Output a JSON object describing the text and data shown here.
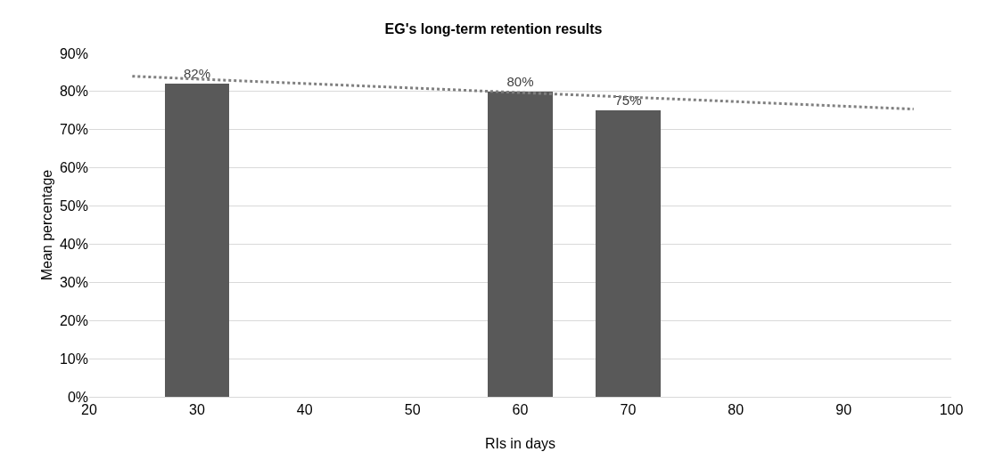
{
  "chart_data": {
    "type": "bar",
    "title": "EG's long-term retention results",
    "xlabel": "RIs in days",
    "ylabel": "Mean percentage",
    "x": [
      30,
      60,
      70
    ],
    "series": [
      {
        "color": "#595959",
        "values": [
          82,
          80,
          75
        ],
        "value_labels": [
          "82%",
          "80%",
          "75%"
        ]
      },
      {
        "type": "line",
        "color": "#7f7f7f",
        "line_style": "dotted",
        "marker": "none",
        "x": [
          24,
          96.5
        ],
        "values": [
          84,
          75.4
        ]
      }
    ],
    "xlim": [
      20,
      100
    ],
    "xticks": [
      20,
      30,
      40,
      50,
      60,
      70,
      80,
      90,
      100
    ],
    "ylim": [
      0,
      90
    ],
    "yticks": [
      {
        "value": 0,
        "label": "0%"
      },
      {
        "value": 10,
        "label": "10%"
      },
      {
        "value": 20,
        "label": "20%"
      },
      {
        "value": 30,
        "label": "30%"
      },
      {
        "value": 40,
        "label": "40%"
      },
      {
        "value": 50,
        "label": "50%"
      },
      {
        "value": 60,
        "label": "60%"
      },
      {
        "value": 70,
        "label": "70%"
      },
      {
        "value": 80,
        "label": "80%"
      },
      {
        "value": 90,
        "label": "90%"
      }
    ],
    "grid": "y",
    "legend": false
  }
}
